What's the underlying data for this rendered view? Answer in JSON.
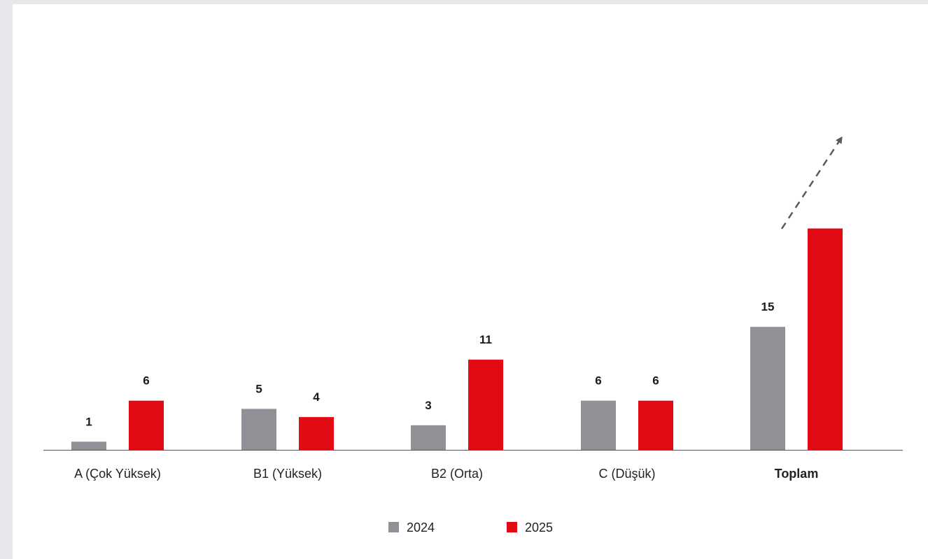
{
  "chart_data": {
    "type": "bar",
    "categories": [
      "A (Çok Yüksek)",
      "B1 (Yüksek)",
      "B2 (Orta)",
      "C (Düşük)",
      "Toplam"
    ],
    "bold_categories": [
      "Toplam"
    ],
    "series": [
      {
        "name": "2024",
        "color": "#929096",
        "values": [
          1,
          5,
          3,
          6,
          15
        ],
        "labels": [
          "1",
          "5",
          "3",
          "6",
          "15"
        ]
      },
      {
        "name": "2025",
        "color": "#e20a13",
        "values": [
          6,
          4,
          11,
          6,
          27
        ],
        "labels": [
          "6",
          "4",
          "11",
          "6",
          ""
        ]
      }
    ],
    "annotations": [
      "dashed-up-arrow-on-total"
    ],
    "axis_color": "#555555",
    "title": "",
    "xlabel": "",
    "ylabel": "",
    "grid": false,
    "legend": "bottom-center"
  }
}
